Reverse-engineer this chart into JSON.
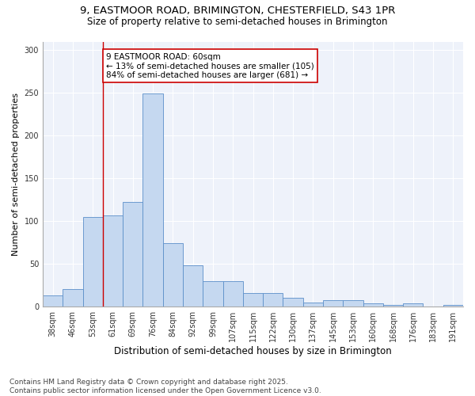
{
  "title_line1": "9, EASTMOOR ROAD, BRIMINGTON, CHESTERFIELD, S43 1PR",
  "title_line2": "Size of property relative to semi-detached houses in Brimington",
  "xlabel": "Distribution of semi-detached houses by size in Brimington",
  "ylabel": "Number of semi-detached properties",
  "categories": [
    "38sqm",
    "46sqm",
    "53sqm",
    "61sqm",
    "69sqm",
    "76sqm",
    "84sqm",
    "92sqm",
    "99sqm",
    "107sqm",
    "115sqm",
    "122sqm",
    "130sqm",
    "137sqm",
    "145sqm",
    "153sqm",
    "160sqm",
    "168sqm",
    "176sqm",
    "183sqm",
    "191sqm"
  ],
  "values": [
    13,
    21,
    105,
    107,
    122,
    249,
    74,
    48,
    30,
    30,
    16,
    16,
    10,
    5,
    8,
    8,
    4,
    2,
    4,
    0,
    2
  ],
  "bar_color": "#c5d8f0",
  "bar_edge_color": "#5b8fc9",
  "vline_x_index": 3,
  "vline_color": "#cc0000",
  "annotation_text": "9 EASTMOOR ROAD: 60sqm\n← 13% of semi-detached houses are smaller (105)\n84% of semi-detached houses are larger (681) →",
  "annotation_box_color": "#ffffff",
  "annotation_box_edge": "#cc0000",
  "ylim": [
    0,
    310
  ],
  "yticks": [
    0,
    50,
    100,
    150,
    200,
    250,
    300
  ],
  "bg_color": "#eef2fa",
  "footer": "Contains HM Land Registry data © Crown copyright and database right 2025.\nContains public sector information licensed under the Open Government Licence v3.0.",
  "title_fontsize": 9.5,
  "subtitle_fontsize": 8.5,
  "axis_label_fontsize": 8,
  "tick_fontsize": 7,
  "annotation_fontsize": 7.5,
  "footer_fontsize": 6.5
}
